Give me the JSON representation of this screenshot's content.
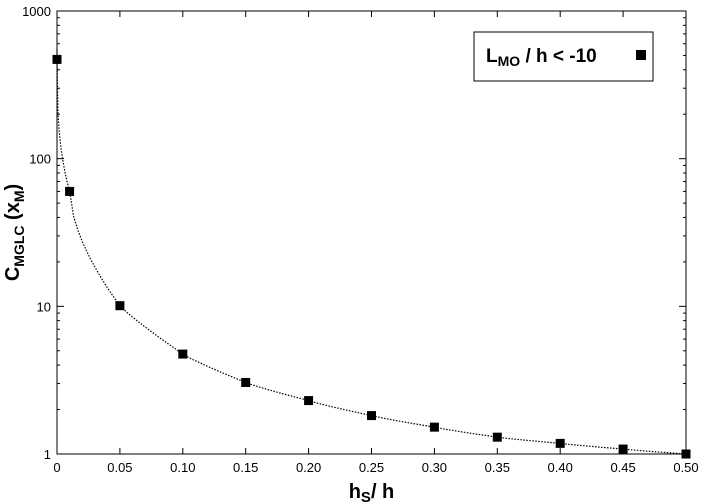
{
  "chart_data": {
    "type": "scatter",
    "x_scale": "linear",
    "y_scale": "log",
    "xlim": [
      0,
      0.5
    ],
    "ylim": [
      1,
      1000
    ],
    "x_ticks": [
      "0",
      "0.05",
      "0.10",
      "0.15",
      "0.20",
      "0.25",
      "0.30",
      "0.35",
      "0.40",
      "0.45",
      "0.50"
    ],
    "x_tick_values": [
      0,
      0.05,
      0.1,
      0.15,
      0.2,
      0.25,
      0.3,
      0.35,
      0.4,
      0.45,
      0.5
    ],
    "y_ticks": [
      "1",
      "10",
      "100",
      "1000"
    ],
    "y_tick_values": [
      1,
      10,
      100,
      1000
    ],
    "xlabel": {
      "main": "h",
      "sub": "S",
      "rest": "/ h"
    },
    "ylabel": {
      "main": "C",
      "sub": "MGLC",
      "mid": " (x",
      "sub2": "M",
      "end": ")"
    },
    "grid": false,
    "legend_position": "top-right",
    "series": [
      {
        "name": {
          "main": "L",
          "sub": "MO",
          "rest": " / h < -10"
        },
        "marker": "square",
        "color": "#000000",
        "fit_line": "dotted",
        "points": [
          {
            "x": 0.0,
            "y": 470
          },
          {
            "x": 0.01,
            "y": 60
          },
          {
            "x": 0.05,
            "y": 10.1
          },
          {
            "x": 0.1,
            "y": 4.75
          },
          {
            "x": 0.15,
            "y": 3.05
          },
          {
            "x": 0.2,
            "y": 2.3
          },
          {
            "x": 0.25,
            "y": 1.82
          },
          {
            "x": 0.3,
            "y": 1.52
          },
          {
            "x": 0.35,
            "y": 1.3
          },
          {
            "x": 0.4,
            "y": 1.18
          },
          {
            "x": 0.45,
            "y": 1.08
          },
          {
            "x": 0.5,
            "y": 1.0
          }
        ]
      }
    ]
  }
}
